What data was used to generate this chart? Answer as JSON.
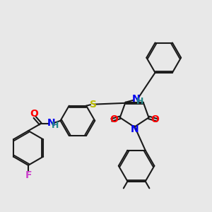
{
  "bg_color": "#e8e8e8",
  "bond_color": "#1a1a1a",
  "figure_size": [
    3.0,
    3.0
  ],
  "dpi": 100,
  "colors": {
    "F": "#cc44cc",
    "O": "#ff0000",
    "N": "#0000ee",
    "S": "#bbbb00",
    "H": "#228888",
    "C": "#1a1a1a"
  }
}
